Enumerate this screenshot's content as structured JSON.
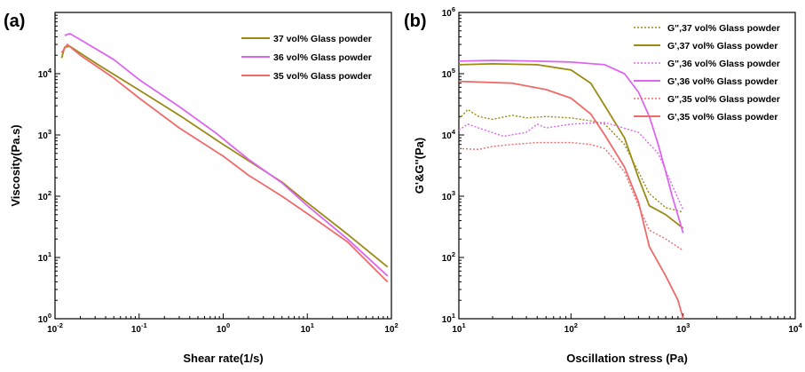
{
  "chart_data": [
    {
      "type": "line",
      "panel_label": "(a)",
      "xlabel": "Shear rate(1/s)",
      "ylabel": "Viscosity(Pa.s)",
      "xscale": "log",
      "yscale": "log",
      "xlim": [
        0.01,
        100
      ],
      "ylim": [
        1,
        100000
      ],
      "xtick_values": [
        0.01,
        0.1,
        1,
        10,
        100
      ],
      "xtick_labels": [
        [
          "10",
          "-2"
        ],
        [
          "10",
          "-1"
        ],
        [
          "10",
          "0"
        ],
        [
          "10",
          "1"
        ],
        [
          "10",
          "2"
        ]
      ],
      "ytick_values": [
        1,
        10,
        100,
        1000,
        10000
      ],
      "ytick_labels": [
        [
          "10",
          "0"
        ],
        [
          "10",
          "1"
        ],
        [
          "10",
          "2"
        ],
        [
          "10",
          "3"
        ],
        [
          "10",
          "4"
        ]
      ],
      "grid": false,
      "legend_position": "top-right",
      "series": [
        {
          "name": "37 vol% Glass powder",
          "color": "#9b8a14",
          "style": "solid",
          "points": [
            [
              0.012,
              18000
            ],
            [
              0.013,
              27000
            ],
            [
              0.015,
              28000
            ],
            [
              0.03,
              15000
            ],
            [
              0.1,
              5400
            ],
            [
              0.3,
              2100
            ],
            [
              1,
              700
            ],
            [
              2,
              380
            ],
            [
              5,
              170
            ],
            [
              10,
              78
            ],
            [
              30,
              24
            ],
            [
              90,
              7
            ]
          ]
        },
        {
          "name": "36 vol% Glass powder",
          "color": "#dd66ee",
          "style": "solid",
          "points": [
            [
              0.013,
              42000
            ],
            [
              0.015,
              45000
            ],
            [
              0.02,
              36000
            ],
            [
              0.05,
              17000
            ],
            [
              0.1,
              8000
            ],
            [
              0.3,
              2900
            ],
            [
              0.8,
              1100
            ],
            [
              2,
              400
            ],
            [
              5,
              165
            ],
            [
              10,
              70
            ],
            [
              30,
              20
            ],
            [
              90,
              5
            ]
          ]
        },
        {
          "name": "35 vol% Glass powder",
          "color": "#f06a6a",
          "style": "solid",
          "points": [
            [
              0.012,
              22000
            ],
            [
              0.014,
              30000
            ],
            [
              0.02,
              20000
            ],
            [
              0.05,
              8500
            ],
            [
              0.1,
              4000
            ],
            [
              0.3,
              1300
            ],
            [
              1,
              450
            ],
            [
              2,
              220
            ],
            [
              5,
              100
            ],
            [
              10,
              52
            ],
            [
              30,
              18
            ],
            [
              90,
              4
            ]
          ]
        }
      ]
    },
    {
      "type": "line",
      "panel_label": "(b)",
      "xlabel": "Oscillation stress (Pa)",
      "ylabel": "G'&G''(Pa)",
      "xscale": "log",
      "yscale": "log",
      "xlim": [
        10,
        10000
      ],
      "ylim": [
        10,
        1000000
      ],
      "xtick_values": [
        10,
        100,
        1000,
        10000
      ],
      "xtick_labels": [
        [
          "10",
          "1"
        ],
        [
          "10",
          "2"
        ],
        [
          "10",
          "3"
        ],
        [
          "10",
          "4"
        ]
      ],
      "ytick_values": [
        10,
        100,
        1000,
        10000,
        100000,
        1000000
      ],
      "ytick_labels": [
        [
          "10",
          "1"
        ],
        [
          "10",
          "2"
        ],
        [
          "10",
          "3"
        ],
        [
          "10",
          "4"
        ],
        [
          "10",
          "5"
        ],
        [
          "10",
          "6"
        ]
      ],
      "grid": false,
      "legend_position": "top-right",
      "series": [
        {
          "name": "G\",37 vol% Glass powder",
          "color": "#9b8a14",
          "style": "dotted",
          "points": [
            [
              10,
              18000
            ],
            [
              12,
              26000
            ],
            [
              15,
              20000
            ],
            [
              20,
              18000
            ],
            [
              30,
              21000
            ],
            [
              40,
              19000
            ],
            [
              60,
              20000
            ],
            [
              100,
              19000
            ],
            [
              150,
              17000
            ],
            [
              200,
              15000
            ],
            [
              300,
              7000
            ],
            [
              400,
              2500
            ],
            [
              500,
              1100
            ],
            [
              700,
              650
            ],
            [
              1000,
              550
            ]
          ]
        },
        {
          "name": "G',37 vol% Glass powder",
          "color": "#9b8a14",
          "style": "solid",
          "points": [
            [
              10,
              140000
            ],
            [
              20,
              145000
            ],
            [
              50,
              140000
            ],
            [
              100,
              115000
            ],
            [
              150,
              70000
            ],
            [
              200,
              30000
            ],
            [
              300,
              9000
            ],
            [
              400,
              2000
            ],
            [
              500,
              700
            ],
            [
              700,
              500
            ],
            [
              1000,
              300
            ]
          ]
        },
        {
          "name": "G\",36 vol% Glass powder",
          "color": "#dd66ee",
          "style": "dotted",
          "points": [
            [
              10,
              12000
            ],
            [
              12,
              15000
            ],
            [
              15,
              13000
            ],
            [
              25,
              9500
            ],
            [
              40,
              11000
            ],
            [
              50,
              15000
            ],
            [
              60,
              13000
            ],
            [
              100,
              15000
            ],
            [
              200,
              16000
            ],
            [
              400,
              11000
            ],
            [
              600,
              5000
            ],
            [
              800,
              1500
            ],
            [
              1000,
              600
            ]
          ]
        },
        {
          "name": "G',36 vol% Glass powder",
          "color": "#dd66ee",
          "style": "solid",
          "points": [
            [
              10,
              160000
            ],
            [
              20,
              165000
            ],
            [
              50,
              160000
            ],
            [
              100,
              155000
            ],
            [
              200,
              140000
            ],
            [
              300,
              100000
            ],
            [
              400,
              50000
            ],
            [
              500,
              20000
            ],
            [
              600,
              7000
            ],
            [
              700,
              2500
            ],
            [
              800,
              1000
            ],
            [
              1000,
              250
            ]
          ]
        },
        {
          "name": "G\",35 vol% Glass powder",
          "color": "#f06a6a",
          "style": "dotted",
          "points": [
            [
              10,
              6000
            ],
            [
              15,
              5800
            ],
            [
              20,
              6500
            ],
            [
              30,
              7000
            ],
            [
              50,
              7500
            ],
            [
              100,
              7500
            ],
            [
              150,
              7000
            ],
            [
              200,
              6000
            ],
            [
              300,
              2500
            ],
            [
              400,
              700
            ],
            [
              500,
              280
            ],
            [
              700,
              200
            ],
            [
              1000,
              130
            ]
          ]
        },
        {
          "name": "G',35 vol% Glass powder",
          "color": "#f06a6a",
          "style": "solid",
          "points": [
            [
              10,
              75000
            ],
            [
              30,
              70000
            ],
            [
              60,
              55000
            ],
            [
              100,
              40000
            ],
            [
              150,
              22000
            ],
            [
              200,
              10000
            ],
            [
              300,
              3000
            ],
            [
              400,
              800
            ],
            [
              500,
              150
            ],
            [
              700,
              50
            ],
            [
              900,
              20
            ],
            [
              1000,
              10
            ]
          ]
        }
      ]
    }
  ]
}
